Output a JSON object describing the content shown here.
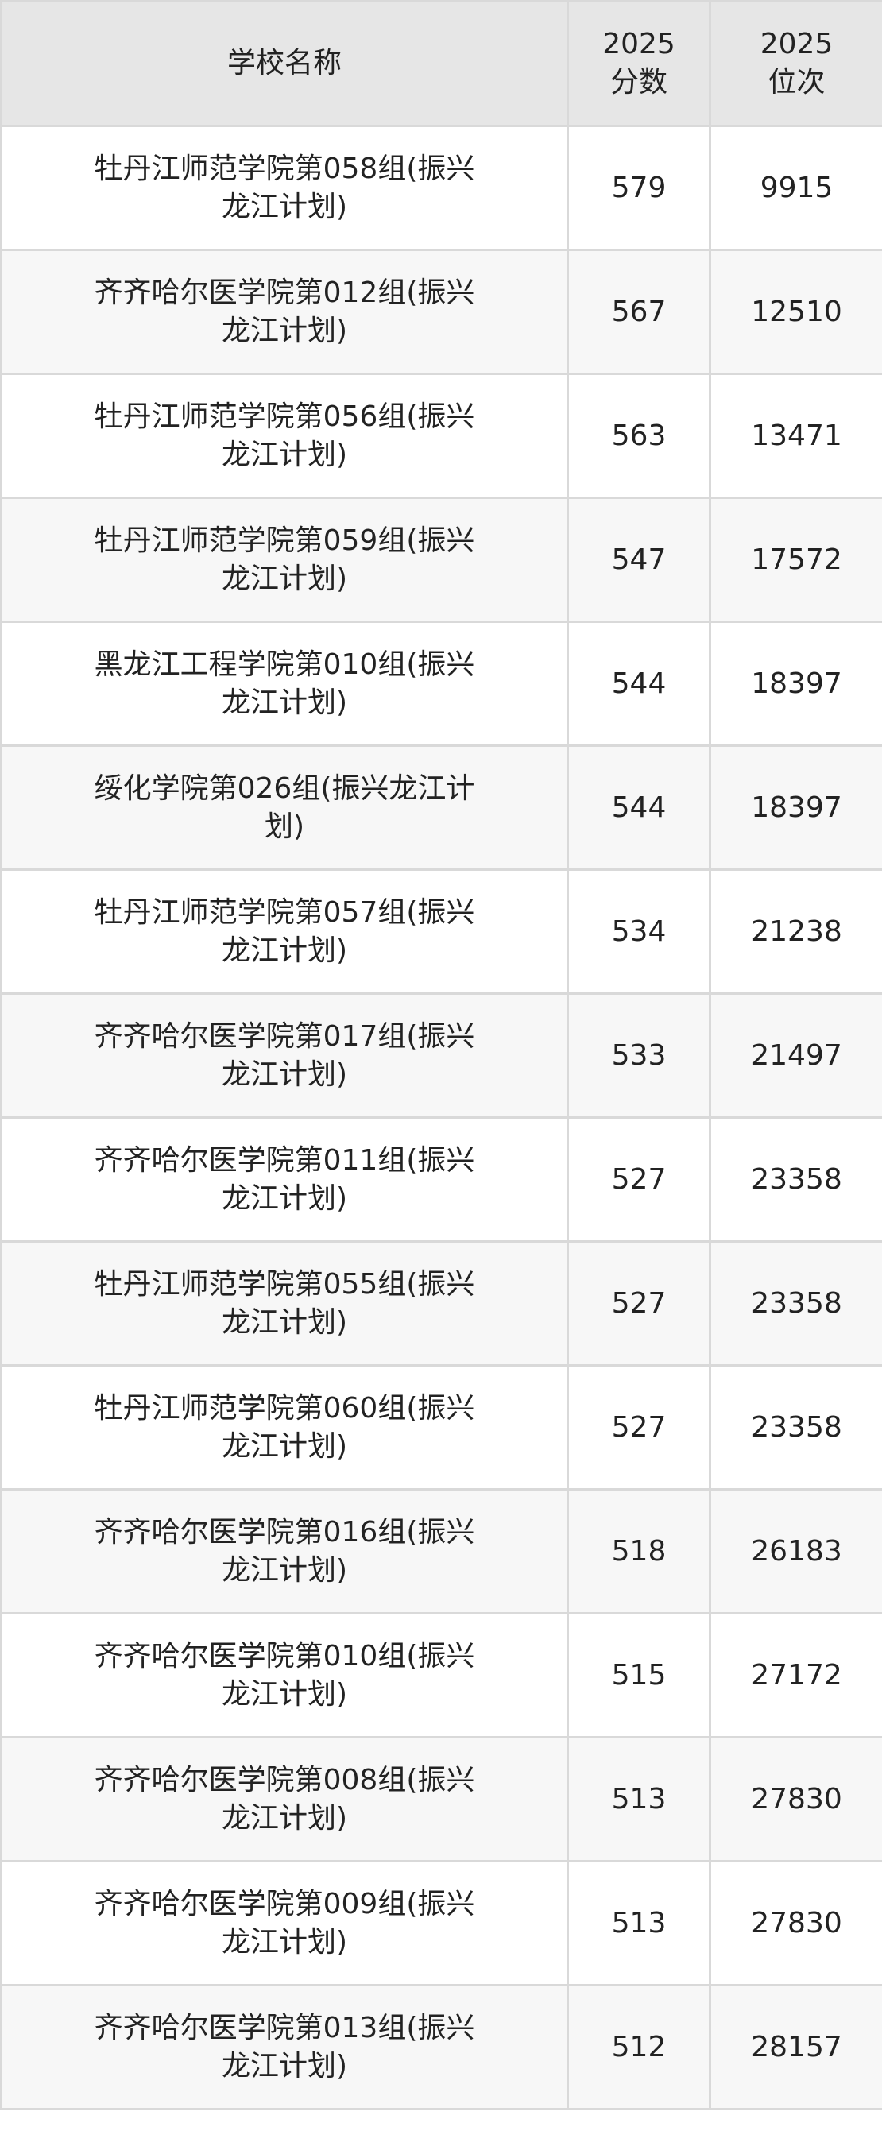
{
  "header": {
    "name": "学校名称",
    "score_year": "2025",
    "score_label": "分数",
    "rank_year": "2025",
    "rank_label": "位次"
  },
  "rows": [
    {
      "name": "牡丹江师范学院第058组(振兴龙江计划)",
      "score": "579",
      "rank": "9915"
    },
    {
      "name": "齐齐哈尔医学院第012组(振兴龙江计划)",
      "score": "567",
      "rank": "12510"
    },
    {
      "name": "牡丹江师范学院第056组(振兴龙江计划)",
      "score": "563",
      "rank": "13471"
    },
    {
      "name": "牡丹江师范学院第059组(振兴龙江计划)",
      "score": "547",
      "rank": "17572"
    },
    {
      "name": "黑龙江工程学院第010组(振兴龙江计划)",
      "score": "544",
      "rank": "18397"
    },
    {
      "name": "绥化学院第026组(振兴龙江计划)",
      "score": "544",
      "rank": "18397"
    },
    {
      "name": "牡丹江师范学院第057组(振兴龙江计划)",
      "score": "534",
      "rank": "21238"
    },
    {
      "name": "齐齐哈尔医学院第017组(振兴龙江计划)",
      "score": "533",
      "rank": "21497"
    },
    {
      "name": "齐齐哈尔医学院第011组(振兴龙江计划)",
      "score": "527",
      "rank": "23358"
    },
    {
      "name": "牡丹江师范学院第055组(振兴龙江计划)",
      "score": "527",
      "rank": "23358"
    },
    {
      "name": "牡丹江师范学院第060组(振兴龙江计划)",
      "score": "527",
      "rank": "23358"
    },
    {
      "name": "齐齐哈尔医学院第016组(振兴龙江计划)",
      "score": "518",
      "rank": "26183"
    },
    {
      "name": "齐齐哈尔医学院第010组(振兴龙江计划)",
      "score": "515",
      "rank": "27172"
    },
    {
      "name": "齐齐哈尔医学院第008组(振兴龙江计划)",
      "score": "513",
      "rank": "27830"
    },
    {
      "name": "齐齐哈尔医学院第009组(振兴龙江计划)",
      "score": "513",
      "rank": "27830"
    },
    {
      "name": "齐齐哈尔医学院第013组(振兴龙江计划)",
      "score": "512",
      "rank": "28157"
    }
  ]
}
